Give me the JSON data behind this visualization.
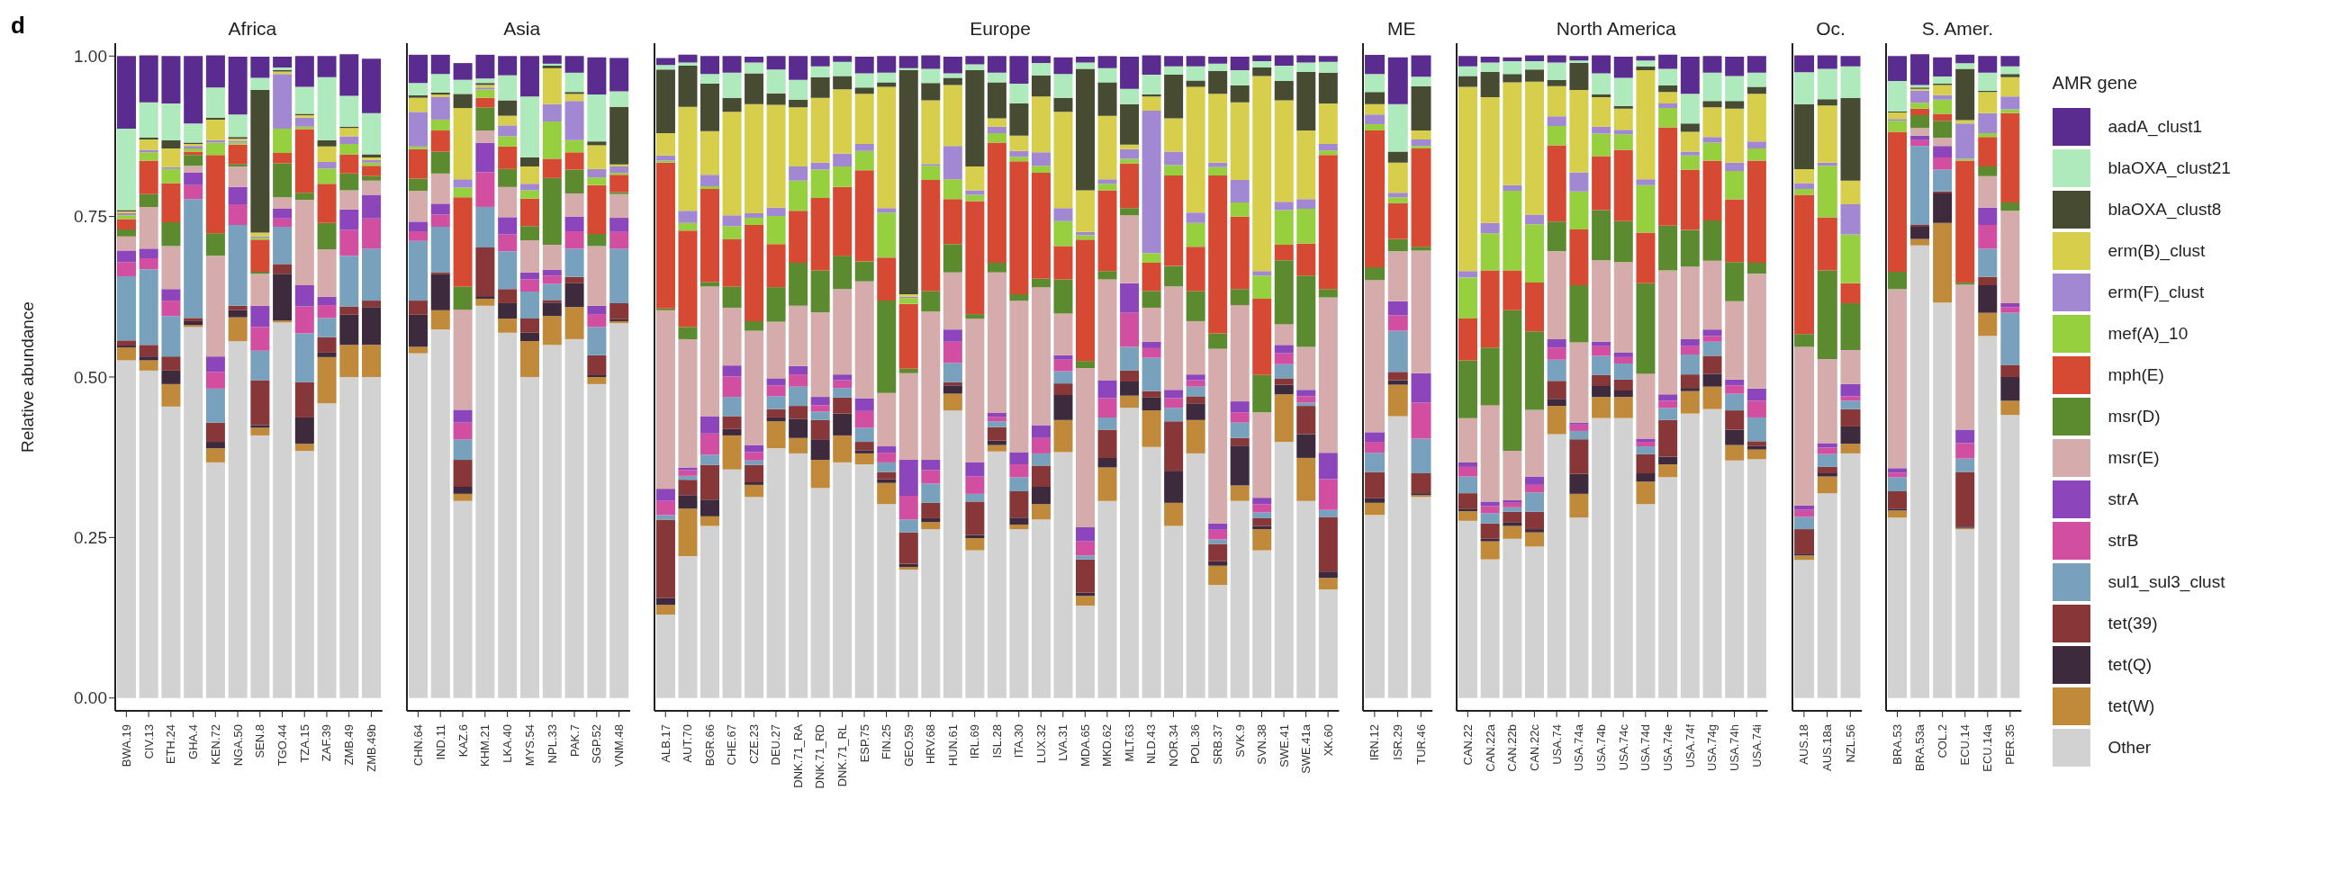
{
  "chart_data": [
    {
      "type": "bar",
      "stacked": true,
      "title": "Africa",
      "ylabel": "Relative abundance",
      "annotations": [
        "d"
      ],
      "ylim": [
        -0.02,
        1.02
      ],
      "yticks": [
        {
          "value": 0,
          "label": "0.00"
        },
        {
          "value": 0.25,
          "label": "0.25"
        },
        {
          "value": 0.5,
          "label": "0.50"
        },
        {
          "value": 0.75,
          "label": "0.75"
        },
        {
          "value": 1,
          "label": "1.00"
        }
      ],
      "categories": [
        "BWA.19",
        "CIV.13",
        "ETH.24",
        "GHA.4",
        "KEN.72",
        "NGA.50",
        "SEN.8",
        "TGO.44",
        "TZA.15",
        "ZAF.39",
        "ZMB.49",
        "ZMB.49b"
      ],
      "series": [
        {
          "color": "#d2d2d2",
          "values": [
            0.526,
            0.51,
            0.454,
            0.578,
            0.367,
            0.556,
            0.409,
            0.585,
            0.385,
            0.459,
            0.5,
            0.5
          ]
        },
        {
          "color": "#c18a3a",
          "values": [
            0.02,
            0.016,
            0.035,
            0.003,
            0.022,
            0.037,
            0.012,
            0.003,
            0.011,
            0.072,
            0.05,
            0.05
          ]
        },
        {
          "color": "#3d2a3d",
          "values": [
            0.003,
            0.006,
            0.021,
            0.006,
            0.01,
            0.011,
            0.004,
            0.073,
            0.041,
            0.007,
            0.047,
            0.059
          ]
        },
        {
          "color": "#873737",
          "values": [
            0.008,
            0.018,
            0.022,
            0.005,
            0.03,
            0.007,
            0.07,
            0.015,
            0.055,
            0.024,
            0.013,
            0.01
          ]
        },
        {
          "color": "#77a1bd",
          "values": [
            0.1,
            0.118,
            0.063,
            0.185,
            0.053,
            0.126,
            0.046,
            0.058,
            0.076,
            0.03,
            0.079,
            0.081
          ]
        },
        {
          "color": "#d14ea0",
          "values": [
            0.022,
            0.017,
            0.024,
            0.022,
            0.026,
            0.032,
            0.037,
            0.013,
            0.042,
            0.02,
            0.04,
            0.047
          ]
        },
        {
          "color": "#8d45bc",
          "values": [
            0.018,
            0.015,
            0.018,
            0.02,
            0.024,
            0.027,
            0.033,
            0.015,
            0.033,
            0.013,
            0.032,
            0.037
          ]
        },
        {
          "color": "#d5abab",
          "values": [
            0.022,
            0.065,
            0.067,
            0.01,
            0.157,
            0.032,
            0.05,
            0.018,
            0.133,
            0.074,
            0.03,
            0.022
          ]
        },
        {
          "color": "#5b8a2f",
          "values": [
            0.011,
            0.02,
            0.037,
            0.017,
            0.035,
            0.004,
            0.003,
            0.053,
            0.011,
            0.041,
            0.026,
            0.007
          ]
        },
        {
          "color": "#d64a33",
          "values": [
            0.016,
            0.052,
            0.061,
            0.005,
            0.122,
            0.03,
            0.05,
            0.016,
            0.099,
            0.061,
            0.03,
            0.016
          ]
        },
        {
          "color": "#96d03e",
          "values": [
            0.006,
            0.013,
            0.022,
            0.005,
            0.019,
            0.003,
            0.003,
            0.038,
            0.004,
            0.024,
            0.016,
            0.005
          ]
        },
        {
          "color": "#a287d3",
          "values": [
            0.003,
            0.004,
            0.003,
            0.004,
            0.004,
            0.003,
            0.002,
            0.085,
            0.014,
            0.01,
            0.012,
            0.004
          ]
        },
        {
          "color": "#d7ce4b",
          "values": [
            0.003,
            0.016,
            0.029,
            0.003,
            0.032,
            0.003,
            0.006,
            0.004,
            0.004,
            0.024,
            0.013,
            0.004
          ]
        },
        {
          "color": "#464b31",
          "values": [
            0.002,
            0.003,
            0.013,
            0.002,
            0.003,
            0.003,
            0.222,
            0.002,
            0.002,
            0.01,
            0.002,
            0.005
          ]
        },
        {
          "color": "#aeeabb",
          "values": [
            0.127,
            0.055,
            0.057,
            0.03,
            0.047,
            0.035,
            0.019,
            0.004,
            0.042,
            0.098,
            0.048,
            0.064
          ]
        },
        {
          "color": "#5b2c8f",
          "values": [
            0.113,
            0.073,
            0.074,
            0.105,
            0.05,
            0.09,
            0.033,
            0.017,
            0.048,
            0.033,
            0.065,
            0.085
          ]
        }
      ]
    },
    {
      "type": "bar",
      "stacked": true,
      "title": "Asia",
      "tick_labels": "x",
      "ylim": [
        -0.02,
        1.02
      ],
      "categories": [
        "CHN.64",
        "IND.11",
        "KAZ.6",
        "KHM.21",
        "LKA.40",
        "MYS.54",
        "NPL.33",
        "PAK.7",
        "SGP.52",
        "VNM.48"
      ],
      "series": [
        {
          "color": "#d2d2d2",
          "values": [
            0.537,
            0.574,
            0.307,
            0.611,
            0.569,
            0.5,
            0.55,
            0.559,
            0.489,
            0.584
          ]
        },
        {
          "color": "#c18a3a",
          "values": [
            0.01,
            0.03,
            0.011,
            0.011,
            0.022,
            0.056,
            0.045,
            0.05,
            0.011,
            0.003
          ]
        },
        {
          "color": "#3d2a3d",
          "values": [
            0.05,
            0.056,
            0.011,
            0.004,
            0.024,
            0.013,
            0.021,
            0.037,
            0.004,
            0.003
          ]
        },
        {
          "color": "#873737",
          "values": [
            0.022,
            0.003,
            0.042,
            0.076,
            0.022,
            0.022,
            0.004,
            0.01,
            0.03,
            0.025
          ]
        },
        {
          "color": "#77a1bd",
          "values": [
            0.093,
            0.071,
            0.032,
            0.063,
            0.059,
            0.042,
            0.025,
            0.044,
            0.044,
            0.085
          ]
        },
        {
          "color": "#d14ea0",
          "values": [
            0.015,
            0.019,
            0.026,
            0.054,
            0.026,
            0.019,
            0.013,
            0.027,
            0.02,
            0.026
          ]
        },
        {
          "color": "#8d45bc",
          "values": [
            0.015,
            0.017,
            0.02,
            0.046,
            0.027,
            0.011,
            0.009,
            0.023,
            0.013,
            0.022
          ]
        },
        {
          "color": "#d5abab",
          "values": [
            0.048,
            0.047,
            0.156,
            0.019,
            0.047,
            0.05,
            0.039,
            0.036,
            0.093,
            0.037
          ]
        },
        {
          "color": "#5b8a2f",
          "values": [
            0.019,
            0.034,
            0.036,
            0.036,
            0.028,
            0.022,
            0.104,
            0.037,
            0.019,
            0.003
          ]
        },
        {
          "color": "#d64a33",
          "values": [
            0.046,
            0.033,
            0.139,
            0.015,
            0.035,
            0.043,
            0.03,
            0.027,
            0.076,
            0.027
          ]
        },
        {
          "color": "#96d03e",
          "values": [
            0.004,
            0.017,
            0.015,
            0.013,
            0.016,
            0.013,
            0.058,
            0.019,
            0.012,
            0.003
          ]
        },
        {
          "color": "#a287d3",
          "values": [
            0.054,
            0.035,
            0.013,
            0.003,
            0.017,
            0.01,
            0.027,
            0.061,
            0.013,
            0.01
          ]
        },
        {
          "color": "#d7ce4b",
          "values": [
            0.022,
            0.004,
            0.111,
            0.004,
            0.015,
            0.027,
            0.056,
            0.011,
            0.037,
            0.003
          ]
        },
        {
          "color": "#464b31",
          "values": [
            0.004,
            0.003,
            0.022,
            0.003,
            0.024,
            0.014,
            0.004,
            0.003,
            0.006,
            0.09
          ]
        },
        {
          "color": "#aeeabb",
          "values": [
            0.019,
            0.029,
            0.022,
            0.007,
            0.039,
            0.095,
            0.003,
            0.03,
            0.073,
            0.024
          ]
        },
        {
          "color": "#5b2c8f",
          "values": [
            0.044,
            0.03,
            0.026,
            0.037,
            0.03,
            0.063,
            0.013,
            0.026,
            0.058,
            0.052
          ]
        }
      ]
    },
    {
      "type": "bar",
      "stacked": true,
      "title": "Europe",
      "tick_labels": "x",
      "ylim": [
        -0.02,
        1.02
      ],
      "categories": [
        "ALB.17",
        "AUT.70",
        "BGR.66",
        "CHE.67",
        "CZE.23",
        "DEU.27",
        "DNK.71_RA",
        "DNK.71_RD",
        "DNK.71_RL",
        "ESP.75",
        "FIN.25",
        "GEO.59",
        "HRV.68",
        "HUN.61",
        "IRL.69",
        "ISL.28",
        "ITA.30",
        "LUX.32",
        "LVA.31",
        "MDA.65",
        "MKD.62",
        "MLT.63",
        "NLD.43",
        "NOR.34",
        "POL.36",
        "SRB.37",
        "SVK.9",
        "SVN.38",
        "SWE.41",
        "SWE.41a",
        "XK.60"
      ],
      "series": [
        {
          "color": "#d2d2d2",
          "values": [
            0.13,
            0.221,
            0.268,
            0.356,
            0.313,
            0.389,
            0.381,
            0.327,
            0.367,
            0.364,
            0.302,
            0.2,
            0.263,
            0.448,
            0.23,
            0.384,
            0.263,
            0.278,
            0.383,
            0.144,
            0.307,
            0.452,
            0.391,
            0.268,
            0.381,
            0.176,
            0.307,
            0.23,
            0.399,
            0.307,
            0.169
          ]
        },
        {
          "color": "#c18a3a",
          "values": [
            0.015,
            0.074,
            0.015,
            0.053,
            0.019,
            0.042,
            0.024,
            0.044,
            0.042,
            0.017,
            0.033,
            0.004,
            0.011,
            0.026,
            0.019,
            0.01,
            0.007,
            0.024,
            0.05,
            0.015,
            0.052,
            0.019,
            0.057,
            0.036,
            0.052,
            0.03,
            0.024,
            0.033,
            0.074,
            0.067,
            0.018
          ]
        },
        {
          "color": "#3d2a3d",
          "values": [
            0.011,
            0.021,
            0.026,
            0.01,
            0.004,
            0.006,
            0.03,
            0.032,
            0.034,
            0.005,
            0.006,
            0.005,
            0.006,
            0.013,
            0.005,
            0.007,
            0.011,
            0.027,
            0.039,
            0.005,
            0.015,
            0.022,
            0.02,
            0.05,
            0.026,
            0.007,
            0.062,
            0.005,
            0.015,
            0.037,
            0.01
          ]
        },
        {
          "color": "#873737",
          "values": [
            0.122,
            0.024,
            0.054,
            0.02,
            0.027,
            0.013,
            0.02,
            0.03,
            0.025,
            0.013,
            0.011,
            0.049,
            0.024,
            0.005,
            0.052,
            0.021,
            0.041,
            0.033,
            0.018,
            0.052,
            0.044,
            0.017,
            0.01,
            0.077,
            0.011,
            0.027,
            0.012,
            0.012,
            0.01,
            0.044,
            0.085
          ]
        },
        {
          "color": "#77a1bd",
          "values": [
            0.007,
            0.006,
            0.016,
            0.03,
            0.007,
            0.02,
            0.03,
            0.013,
            0.015,
            0.022,
            0.015,
            0.02,
            0.03,
            0.03,
            0.012,
            0.009,
            0.022,
            0.019,
            0.019,
            0.006,
            0.019,
            0.037,
            0.052,
            0.021,
            0.015,
            0.007,
            0.024,
            0.009,
            0.022,
            0.005,
            0.011
          ]
        },
        {
          "color": "#d14ea0",
          "values": [
            0.022,
            0.009,
            0.033,
            0.032,
            0.013,
            0.017,
            0.019,
            0.01,
            0.012,
            0.026,
            0.015,
            0.037,
            0.021,
            0.033,
            0.027,
            0.007,
            0.02,
            0.024,
            0.018,
            0.022,
            0.03,
            0.053,
            0.015,
            0.015,
            0.01,
            0.015,
            0.016,
            0.013,
            0.017,
            0.01,
            0.048
          ]
        },
        {
          "color": "#8d45bc",
          "values": [
            0.019,
            0.004,
            0.027,
            0.017,
            0.011,
            0.011,
            0.013,
            0.013,
            0.009,
            0.02,
            0.01,
            0.056,
            0.016,
            0.019,
            0.022,
            0.006,
            0.019,
            0.02,
            0.007,
            0.022,
            0.028,
            0.046,
            0.01,
            0.013,
            0.009,
            0.01,
            0.017,
            0.01,
            0.013,
            0.01,
            0.041
          ]
        },
        {
          "color": "#d5abab",
          "values": [
            0.278,
            0.2,
            0.202,
            0.09,
            0.178,
            0.088,
            0.094,
            0.132,
            0.133,
            0.182,
            0.083,
            0.135,
            0.231,
            0.089,
            0.224,
            0.219,
            0.236,
            0.215,
            0.065,
            0.248,
            0.157,
            0.106,
            0.053,
            0.161,
            0.083,
            0.272,
            0.15,
            0.133,
            0.032,
            0.067,
            0.242
          ]
        },
        {
          "color": "#5b8a2f",
          "values": [
            0.003,
            0.019,
            0.007,
            0.033,
            0.015,
            0.054,
            0.067,
            0.065,
            0.052,
            0.031,
            0.144,
            0.007,
            0.032,
            0.044,
            0.007,
            0.015,
            0.01,
            0.013,
            0.053,
            0.011,
            0.013,
            0.011,
            0.026,
            0.032,
            0.047,
            0.024,
            0.025,
            0.058,
            0.1,
            0.111,
            0.013
          ]
        },
        {
          "color": "#d64a33",
          "values": [
            0.227,
            0.15,
            0.145,
            0.074,
            0.15,
            0.067,
            0.081,
            0.113,
            0.107,
            0.142,
            0.067,
            0.101,
            0.173,
            0.07,
            0.176,
            0.187,
            0.207,
            0.165,
            0.052,
            0.189,
            0.126,
            0.07,
            0.044,
            0.141,
            0.069,
            0.246,
            0.113,
            0.119,
            0.024,
            0.05,
            0.209
          ]
        },
        {
          "color": "#96d03e",
          "values": [
            0.003,
            0.012,
            0.004,
            0.02,
            0.011,
            0.044,
            0.047,
            0.044,
            0.032,
            0.03,
            0.07,
            0.009,
            0.022,
            0.031,
            0.01,
            0.015,
            0.007,
            0.011,
            0.039,
            0.007,
            0.01,
            0.007,
            0.015,
            0.016,
            0.037,
            0.013,
            0.022,
            0.036,
            0.054,
            0.054,
            0.007
          ]
        },
        {
          "color": "#a287d3",
          "values": [
            0.008,
            0.019,
            0.018,
            0.017,
            0.007,
            0.013,
            0.022,
            0.011,
            0.02,
            0.011,
            0.007,
            0.002,
            0.003,
            0.052,
            0.007,
            0.01,
            0.009,
            0.021,
            0.02,
            0.005,
            0.007,
            0.015,
            0.222,
            0.021,
            0.016,
            0.007,
            0.035,
            0.007,
            0.013,
            0.015,
            0.01
          ]
        },
        {
          "color": "#d7ce4b",
          "values": [
            0.035,
            0.162,
            0.068,
            0.161,
            0.17,
            0.16,
            0.092,
            0.101,
            0.1,
            0.078,
            0.189,
            0.004,
            0.099,
            0.095,
            0.037,
            0.013,
            0.024,
            0.087,
            0.15,
            0.065,
            0.099,
            0.007,
            0.022,
            0.052,
            0.196,
            0.107,
            0.121,
            0.304,
            0.158,
            0.107,
            0.063
          ]
        },
        {
          "color": "#464b31",
          "values": [
            0.099,
            0.064,
            0.074,
            0.022,
            0.048,
            0.018,
            0.012,
            0.032,
            0.021,
            0.01,
            0.007,
            0.349,
            0.027,
            0.011,
            0.15,
            0.056,
            0.05,
            0.033,
            0.022,
            0.189,
            0.052,
            0.063,
            0.003,
            0.068,
            0.01,
            0.036,
            0.026,
            0.013,
            0.03,
            0.091,
            0.048
          ]
        },
        {
          "color": "#aeeabb",
          "values": [
            0.007,
            0.005,
            0.015,
            0.039,
            0.017,
            0.037,
            0.031,
            0.017,
            0.022,
            0.022,
            0.015,
            0.003,
            0.022,
            0.007,
            0.009,
            0.015,
            0.031,
            0.019,
            0.037,
            0.01,
            0.022,
            0.024,
            0.031,
            0.013,
            0.022,
            0.011,
            0.024,
            0.01,
            0.024,
            0.015,
            0.017
          ]
        },
        {
          "color": "#5b2c8f",
          "values": [
            0.011,
            0.012,
            0.028,
            0.026,
            0.009,
            0.021,
            0.037,
            0.016,
            0.009,
            0.026,
            0.026,
            0.019,
            0.021,
            0.026,
            0.013,
            0.026,
            0.043,
            0.011,
            0.026,
            0.009,
            0.019,
            0.05,
            0.03,
            0.016,
            0.016,
            0.011,
            0.021,
            0.009,
            0.016,
            0.011,
            0.009
          ]
        }
      ]
    },
    {
      "type": "bar",
      "stacked": true,
      "title": "ME",
      "tick_labels": "x",
      "ylim": [
        -0.02,
        1.02
      ],
      "categories": [
        "IRN.12",
        "ISR.29",
        "TUR.46"
      ],
      "series": [
        {
          "color": "#d2d2d2",
          "values": [
            0.285,
            0.439,
            0.313
          ]
        },
        {
          "color": "#c18a3a",
          "values": [
            0.019,
            0.049,
            0.003
          ]
        },
        {
          "color": "#3d2a3d",
          "values": [
            0.007,
            0.007,
            0.003
          ]
        },
        {
          "color": "#873737",
          "values": [
            0.041,
            0.013,
            0.031
          ]
        },
        {
          "color": "#77a1bd",
          "values": [
            0.03,
            0.064,
            0.054
          ]
        },
        {
          "color": "#d14ea0",
          "values": [
            0.017,
            0.024,
            0.056
          ]
        },
        {
          "color": "#8d45bc",
          "values": [
            0.015,
            0.022,
            0.046
          ]
        },
        {
          "color": "#d5abab",
          "values": [
            0.237,
            0.078,
            0.191
          ]
        },
        {
          "color": "#5b8a2f",
          "values": [
            0.02,
            0.019,
            0.006
          ]
        },
        {
          "color": "#d64a33",
          "values": [
            0.213,
            0.056,
            0.153
          ]
        },
        {
          "color": "#96d03e",
          "values": [
            0.01,
            0.009,
            0.004
          ]
        },
        {
          "color": "#a287d3",
          "values": [
            0.015,
            0.007,
            0.01
          ]
        },
        {
          "color": "#d7ce4b",
          "values": [
            0.016,
            0.047,
            0.014
          ]
        },
        {
          "color": "#464b31",
          "values": [
            0.019,
            0.017,
            0.069
          ]
        },
        {
          "color": "#aeeabb",
          "values": [
            0.028,
            0.074,
            0.015
          ]
        },
        {
          "color": "#5b2c8f",
          "values": [
            0.03,
            0.073,
            0.033
          ]
        }
      ]
    },
    {
      "type": "bar",
      "stacked": true,
      "title": "North America",
      "tick_labels": "x",
      "ylim": [
        -0.02,
        1.02
      ],
      "categories": [
        "CAN.22",
        "CAN.22a",
        "CAN.22b",
        "CAN.22c",
        "USA.74",
        "USA.74a",
        "USA.74b",
        "USA.74c",
        "USA.74d",
        "USA.74e",
        "USA.74f",
        "USA.74g",
        "USA.74h",
        "USA.74i"
      ],
      "series": [
        {
          "color": "#d2d2d2",
          "values": [
            0.276,
            0.216,
            0.248,
            0.236,
            0.411,
            0.281,
            0.436,
            0.436,
            0.302,
            0.344,
            0.443,
            0.45,
            0.37,
            0.372
          ]
        },
        {
          "color": "#c18a3a",
          "values": [
            0.015,
            0.028,
            0.02,
            0.022,
            0.044,
            0.037,
            0.033,
            0.033,
            0.035,
            0.02,
            0.035,
            0.035,
            0.024,
            0.015
          ]
        },
        {
          "color": "#3d2a3d",
          "values": [
            0.004,
            0.004,
            0.006,
            0.005,
            0.011,
            0.031,
            0.017,
            0.01,
            0.013,
            0.012,
            0.005,
            0.02,
            0.024,
            0.006
          ]
        },
        {
          "color": "#873737",
          "values": [
            0.024,
            0.024,
            0.016,
            0.027,
            0.028,
            0.054,
            0.017,
            0.017,
            0.03,
            0.057,
            0.021,
            0.028,
            0.03,
            0.007
          ]
        },
        {
          "color": "#77a1bd",
          "values": [
            0.026,
            0.016,
            0.007,
            0.03,
            0.033,
            0.013,
            0.03,
            0.025,
            0.012,
            0.019,
            0.031,
            0.022,
            0.026,
            0.037
          ]
        },
        {
          "color": "#d14ea0",
          "values": [
            0.015,
            0.011,
            0.007,
            0.012,
            0.019,
            0.01,
            0.015,
            0.01,
            0.007,
            0.011,
            0.013,
            0.009,
            0.013,
            0.026
          ]
        },
        {
          "color": "#8d45bc",
          "values": [
            0.007,
            0.007,
            0.004,
            0.013,
            0.013,
            0.003,
            0.007,
            0.007,
            0.005,
            0.01,
            0.011,
            0.01,
            0.009,
            0.019
          ]
        },
        {
          "color": "#d5abab",
          "values": [
            0.069,
            0.15,
            0.077,
            0.104,
            0.137,
            0.125,
            0.127,
            0.141,
            0.101,
            0.193,
            0.113,
            0.107,
            0.122,
            0.179
          ]
        },
        {
          "color": "#5b8a2f",
          "values": [
            0.09,
            0.09,
            0.219,
            0.122,
            0.046,
            0.089,
            0.078,
            0.064,
            0.141,
            0.07,
            0.057,
            0.063,
            0.061,
            0.017
          ]
        },
        {
          "color": "#d64a33",
          "values": [
            0.065,
            0.12,
            0.062,
            0.076,
            0.119,
            0.087,
            0.084,
            0.111,
            0.079,
            0.153,
            0.094,
            0.093,
            0.098,
            0.159
          ]
        },
        {
          "color": "#96d03e",
          "values": [
            0.064,
            0.058,
            0.124,
            0.091,
            0.03,
            0.059,
            0.035,
            0.024,
            0.074,
            0.03,
            0.022,
            0.028,
            0.044,
            0.019
          ]
        },
        {
          "color": "#a287d3",
          "values": [
            0.01,
            0.016,
            0.009,
            0.015,
            0.015,
            0.03,
            0.011,
            0.007,
            0.009,
            0.007,
            0.006,
            0.009,
            0.013,
            0.011
          ]
        },
        {
          "color": "#d7ce4b",
          "values": [
            0.287,
            0.196,
            0.16,
            0.207,
            0.047,
            0.128,
            0.046,
            0.033,
            0.17,
            0.018,
            0.031,
            0.046,
            0.084,
            0.074
          ]
        },
        {
          "color": "#464b31",
          "values": [
            0.017,
            0.039,
            0.013,
            0.019,
            0.01,
            0.042,
            0.004,
            0.004,
            0.006,
            0.01,
            0.013,
            0.01,
            0.012,
            0.011
          ]
        },
        {
          "color": "#aeeabb",
          "values": [
            0.015,
            0.015,
            0.02,
            0.013,
            0.027,
            0.004,
            0.033,
            0.044,
            0.009,
            0.026,
            0.046,
            0.044,
            0.039,
            0.022
          ]
        },
        {
          "color": "#5b2c8f",
          "values": [
            0.016,
            0.009,
            0.006,
            0.009,
            0.011,
            0.007,
            0.028,
            0.033,
            0.007,
            0.022,
            0.058,
            0.026,
            0.03,
            0.026
          ]
        }
      ]
    },
    {
      "type": "bar",
      "stacked": true,
      "title": "Oc.",
      "tick_labels": "x",
      "ylim": [
        -0.02,
        1.02
      ],
      "categories": [
        "AUS.18",
        "AUS.18a",
        "NZL.56"
      ],
      "series": [
        {
          "color": "#d2d2d2",
          "values": [
            0.215,
            0.319,
            0.381
          ]
        },
        {
          "color": "#c18a3a",
          "values": [
            0.007,
            0.026,
            0.015
          ]
        },
        {
          "color": "#3d2a3d",
          "values": [
            0.003,
            0.005,
            0.027
          ]
        },
        {
          "color": "#873737",
          "values": [
            0.038,
            0.01,
            0.027
          ]
        },
        {
          "color": "#77a1bd",
          "values": [
            0.019,
            0.02,
            0.013
          ]
        },
        {
          "color": "#d14ea0",
          "values": [
            0.011,
            0.01,
            0.007
          ]
        },
        {
          "color": "#8d45bc",
          "values": [
            0.007,
            0.007,
            0.019
          ]
        },
        {
          "color": "#d5abab",
          "values": [
            0.247,
            0.131,
            0.053
          ]
        },
        {
          "color": "#5b8a2f",
          "values": [
            0.02,
            0.138,
            0.073
          ]
        },
        {
          "color": "#d64a33",
          "values": [
            0.217,
            0.083,
            0.031
          ]
        },
        {
          "color": "#96d03e",
          "values": [
            0.009,
            0.08,
            0.076
          ]
        },
        {
          "color": "#a287d3",
          "values": [
            0.009,
            0.005,
            0.047
          ]
        },
        {
          "color": "#d7ce4b",
          "values": [
            0.022,
            0.089,
            0.037
          ]
        },
        {
          "color": "#464b31",
          "values": [
            0.101,
            0.01,
            0.129
          ]
        },
        {
          "color": "#aeeabb",
          "values": [
            0.05,
            0.047,
            0.049
          ]
        },
        {
          "color": "#5b2c8f",
          "values": [
            0.026,
            0.021,
            0.016
          ]
        }
      ]
    },
    {
      "type": "bar",
      "stacked": true,
      "title": "S. Amer.",
      "tick_labels": "x",
      "ylim": [
        -0.02,
        1.02
      ],
      "legend": "right",
      "legend_title": "AMR gene",
      "categories": [
        "BRA.53",
        "BRA.53a",
        "COL.2",
        "ECU.14",
        "ECU.14a",
        "PER.35"
      ],
      "series": [
        {
          "name": "Other",
          "color": "#d2d2d2",
          "values": [
            0.281,
            0.705,
            0.616,
            0.263,
            0.564,
            0.441
          ]
        },
        {
          "name": "tet(W)",
          "color": "#c18a3a",
          "values": [
            0.011,
            0.01,
            0.124,
            0.002,
            0.036,
            0.022
          ]
        },
        {
          "name": "tet(Q)",
          "color": "#3d2a3d",
          "values": [
            0.003,
            0.019,
            0.046,
            0.002,
            0.043,
            0.037
          ]
        },
        {
          "name": "tet(39)",
          "color": "#873737",
          "values": [
            0.027,
            0.003,
            0.003,
            0.085,
            0.013,
            0.019
          ]
        },
        {
          "name": "sul1_sul3_clust",
          "color": "#77a1bd",
          "values": [
            0.022,
            0.123,
            0.034,
            0.021,
            0.044,
            0.081
          ]
        },
        {
          "name": "strB",
          "color": "#d14ea0",
          "values": [
            0.007,
            0.009,
            0.019,
            0.024,
            0.037,
            0.009
          ]
        },
        {
          "name": "strA",
          "color": "#8d45bc",
          "values": [
            0.007,
            0.007,
            0.018,
            0.021,
            0.027,
            0.006
          ]
        },
        {
          "name": "msr(E)",
          "color": "#d5abab",
          "values": [
            0.279,
            0.012,
            0.013,
            0.226,
            0.049,
            0.144
          ]
        },
        {
          "name": "msr(D)",
          "color": "#5b8a2f",
          "values": [
            0.027,
            0.02,
            0.026,
            0.003,
            0.015,
            0.013
          ]
        },
        {
          "name": "mph(E)",
          "color": "#d64a33",
          "values": [
            0.218,
            0.01,
            0.011,
            0.19,
            0.046,
            0.139
          ]
        },
        {
          "name": "mef(A)_10",
          "color": "#96d03e",
          "values": [
            0.017,
            0.009,
            0.022,
            0.003,
            0.006,
            0.006
          ]
        },
        {
          "name": "erm(F)_clust",
          "color": "#a287d3",
          "values": [
            0.003,
            0.019,
            0.007,
            0.055,
            0.031,
            0.02
          ]
        },
        {
          "name": "erm(B)_clust",
          "color": "#d7ce4b",
          "values": [
            0.01,
            0.003,
            0.016,
            0.005,
            0.033,
            0.03
          ]
        },
        {
          "name": "blaOXA_clust8",
          "color": "#464b31",
          "values": [
            0.002,
            0.002,
            0.002,
            0.08,
            0.002,
            0.005
          ]
        },
        {
          "name": "blaOXA_clust21",
          "color": "#aeeabb",
          "values": [
            0.047,
            0.004,
            0.011,
            0.009,
            0.028,
            0.012
          ]
        },
        {
          "name": "aadA_clust1",
          "color": "#5b2c8f",
          "values": [
            0.039,
            0.048,
            0.03,
            0.013,
            0.026,
            0.016
          ]
        }
      ]
    }
  ]
}
